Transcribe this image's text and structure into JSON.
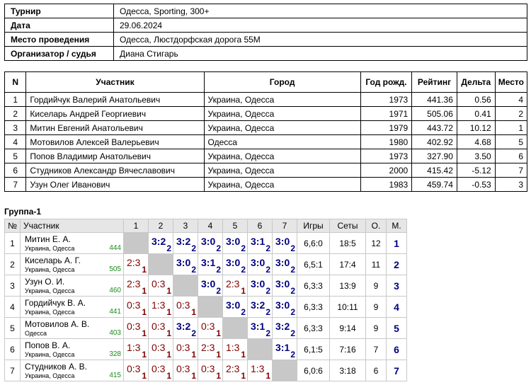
{
  "info": [
    {
      "label": "Турнир",
      "value": "Одесса, Sporting, 300+"
    },
    {
      "label": "Дата",
      "value": "29.06.2024"
    },
    {
      "label": "Место проведения",
      "value": "Одесса, Люстдорфская дорога 55М"
    },
    {
      "label": "Организатор / судья",
      "value": "Диана Стигарь"
    }
  ],
  "participants": {
    "headers": [
      "N",
      "Участник",
      "Город",
      "Год рожд.",
      "Рейтинг",
      "Дельта",
      "Место"
    ],
    "rows": [
      [
        "1",
        "Гордийчук Валерий Анатольевич",
        "Украина, Одесса",
        "1973",
        "441.36",
        "0.56",
        "4"
      ],
      [
        "2",
        "Киселарь Андрей Георгиевич",
        "Украина, Одесса",
        "1971",
        "505.06",
        "0.41",
        "2"
      ],
      [
        "3",
        "Митин Евгений Анатольевич",
        "Украина, Одесса",
        "1979",
        "443.72",
        "10.12",
        "1"
      ],
      [
        "4",
        "Мотовилов Алексей Валерьевич",
        "Одесса",
        "1980",
        "402.92",
        "4.68",
        "5"
      ],
      [
        "5",
        "Попов Владимир Анатольевич",
        "Украина, Одесса",
        "1973",
        "327.90",
        "3.50",
        "6"
      ],
      [
        "6",
        "Студников Александр Вячеславович",
        "Украина, Одесса",
        "2000",
        "415.42",
        "-5.12",
        "7"
      ],
      [
        "7",
        "Узун Олег Иванович",
        "Украина, Одесса",
        "1983",
        "459.74",
        "-0.53",
        "3"
      ]
    ]
  },
  "group": {
    "title": "Группа-1",
    "headers": [
      "№",
      "Участник",
      "1",
      "2",
      "3",
      "4",
      "5",
      "6",
      "7",
      "Игры",
      "Сеты",
      "О.",
      "М."
    ],
    "rows": [
      {
        "num": "1",
        "name": "Митин Е. А.",
        "city": "Украина, Одесса",
        "rating": "444",
        "cells": [
          null,
          [
            "3:2",
            "2"
          ],
          [
            "3:2",
            "2"
          ],
          [
            "3:0",
            "2"
          ],
          [
            "3:0",
            "2"
          ],
          [
            "3:1",
            "2"
          ],
          [
            "3:0",
            "2"
          ]
        ],
        "games": "6,6:0",
        "sets": "18:5",
        "points": "12",
        "place": "1"
      },
      {
        "num": "2",
        "name": "Киселарь А. Г.",
        "city": "Украина, Одесса",
        "rating": "505",
        "cells": [
          [
            "2:3",
            "1"
          ],
          null,
          [
            "3:0",
            "2"
          ],
          [
            "3:1",
            "2"
          ],
          [
            "3:0",
            "2"
          ],
          [
            "3:0",
            "2"
          ],
          [
            "3:0",
            "2"
          ]
        ],
        "games": "6,5:1",
        "sets": "17:4",
        "points": "11",
        "place": "2"
      },
      {
        "num": "3",
        "name": "Узун О. И.",
        "city": "Украина, Одесса",
        "rating": "460",
        "cells": [
          [
            "2:3",
            "1"
          ],
          [
            "0:3",
            "1"
          ],
          null,
          [
            "3:0",
            "2"
          ],
          [
            "2:3",
            "1"
          ],
          [
            "3:0",
            "2"
          ],
          [
            "3:0",
            "2"
          ]
        ],
        "games": "6,3:3",
        "sets": "13:9",
        "points": "9",
        "place": "3"
      },
      {
        "num": "4",
        "name": "Гордийчук В. А.",
        "city": "Украина, Одесса",
        "rating": "441",
        "cells": [
          [
            "0:3",
            "1"
          ],
          [
            "1:3",
            "1"
          ],
          [
            "0:3",
            "1"
          ],
          null,
          [
            "3:0",
            "2"
          ],
          [
            "3:2",
            "2"
          ],
          [
            "3:0",
            "2"
          ]
        ],
        "games": "6,3:3",
        "sets": "10:11",
        "points": "9",
        "place": "4"
      },
      {
        "num": "5",
        "name": "Мотовилов А. В.",
        "city": "Одесса",
        "rating": "403",
        "cells": [
          [
            "0:3",
            "1"
          ],
          [
            "0:3",
            "1"
          ],
          [
            "3:2",
            "2"
          ],
          [
            "0:3",
            "1"
          ],
          null,
          [
            "3:1",
            "2"
          ],
          [
            "3:2",
            "2"
          ]
        ],
        "games": "6,3:3",
        "sets": "9:14",
        "points": "9",
        "place": "5"
      },
      {
        "num": "6",
        "name": "Попов В. А.",
        "city": "Украина, Одесса",
        "rating": "328",
        "cells": [
          [
            "1:3",
            "1"
          ],
          [
            "0:3",
            "1"
          ],
          [
            "0:3",
            "1"
          ],
          [
            "2:3",
            "1"
          ],
          [
            "1:3",
            "1"
          ],
          null,
          [
            "3:1",
            "2"
          ]
        ],
        "games": "6,1:5",
        "sets": "7:16",
        "points": "7",
        "place": "6"
      },
      {
        "num": "7",
        "name": "Студников А. В.",
        "city": "Украина, Одесса",
        "rating": "415",
        "cells": [
          [
            "0:3",
            "1"
          ],
          [
            "0:3",
            "1"
          ],
          [
            "0:3",
            "1"
          ],
          [
            "0:3",
            "1"
          ],
          [
            "2:3",
            "1"
          ],
          [
            "1:3",
            "1"
          ],
          null
        ],
        "games": "6,0:6",
        "sets": "3:18",
        "points": "6",
        "place": "7"
      }
    ]
  },
  "colors": {
    "win": "#000080",
    "loss": "#800000",
    "rating": "#1a8a1a",
    "diagonal": "#c8c8c8",
    "header_bg": "#e6e6e6"
  }
}
